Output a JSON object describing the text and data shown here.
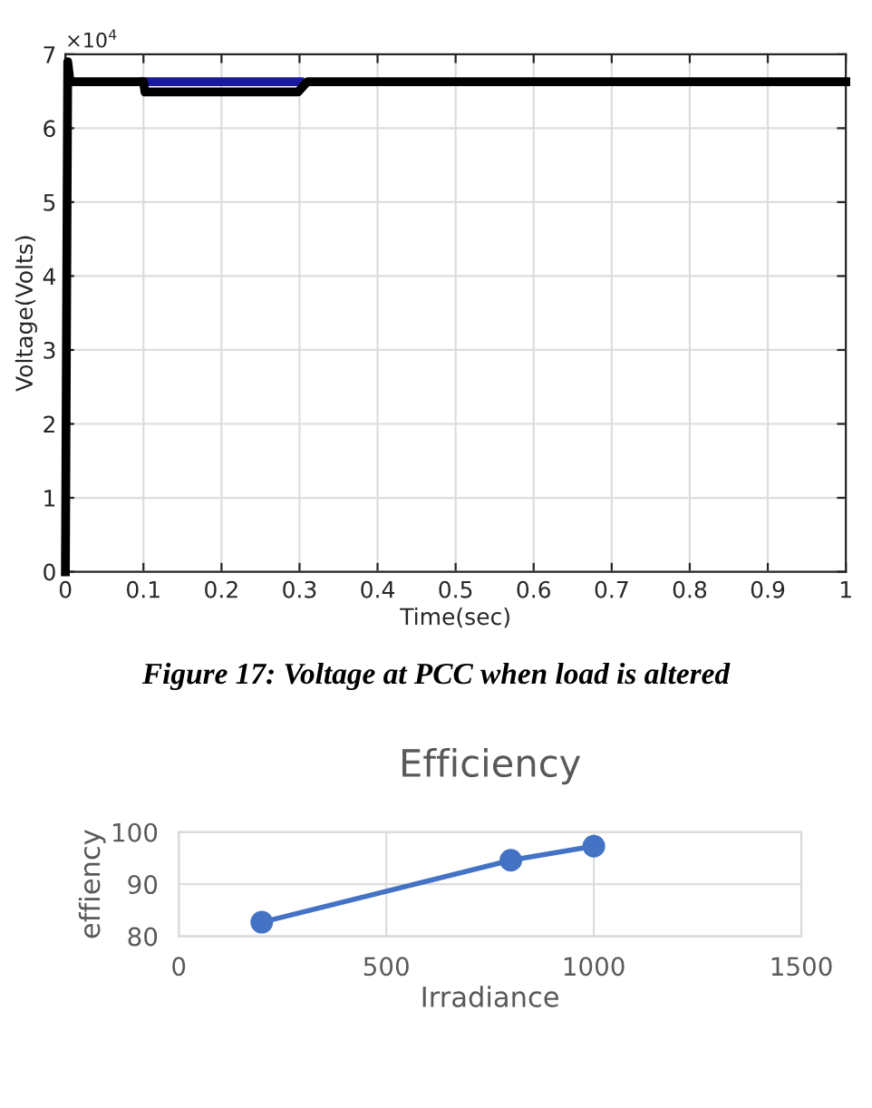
{
  "chart_data": [
    {
      "type": "line",
      "xlabel": "Time(sec)",
      "ylabel": "Voltage(Volts)",
      "xlim": [
        0,
        1
      ],
      "xticks": [
        0,
        0.1,
        0.2,
        0.3,
        0.4,
        0.5,
        0.6,
        0.7,
        0.8,
        0.9,
        1
      ],
      "ylim": [
        0,
        7
      ],
      "yticks": [
        0,
        1,
        2,
        3,
        4,
        5,
        6,
        7
      ],
      "grid": true,
      "marker": "none",
      "line_style": "solid",
      "series": [
        {
          "color": "#1a1aa0",
          "x": [
            0.1,
            0.3
          ],
          "values": [
            6.63,
            6.63
          ]
        },
        {
          "color": "#000000",
          "x": [
            0,
            0.003,
            0.006,
            0.1,
            0.102,
            0.298,
            0.31,
            1
          ],
          "values": [
            0,
            6.9,
            6.63,
            6.63,
            6.49,
            6.49,
            6.63,
            6.63
          ]
        }
      ],
      "annotations": [
        "×10$^{4}$",
        "Figure 17: Voltage at PCC when load is altered"
      ]
    },
    {
      "type": "line",
      "title": "Efficiency",
      "xlabel": "Irradiance",
      "ylabel": "effiency",
      "xlim": [
        0,
        1500
      ],
      "xticks": [
        0,
        500,
        1000,
        1500
      ],
      "ylim": [
        80,
        100
      ],
      "yticks": [
        80,
        90,
        100
      ],
      "grid": true,
      "marker": "circle",
      "line_style": "solid",
      "series": [
        {
          "color": "#4472c4",
          "x": [
            200,
            800,
            1000
          ],
          "values": [
            82.7,
            94.6,
            97.3
          ]
        }
      ]
    }
  ]
}
